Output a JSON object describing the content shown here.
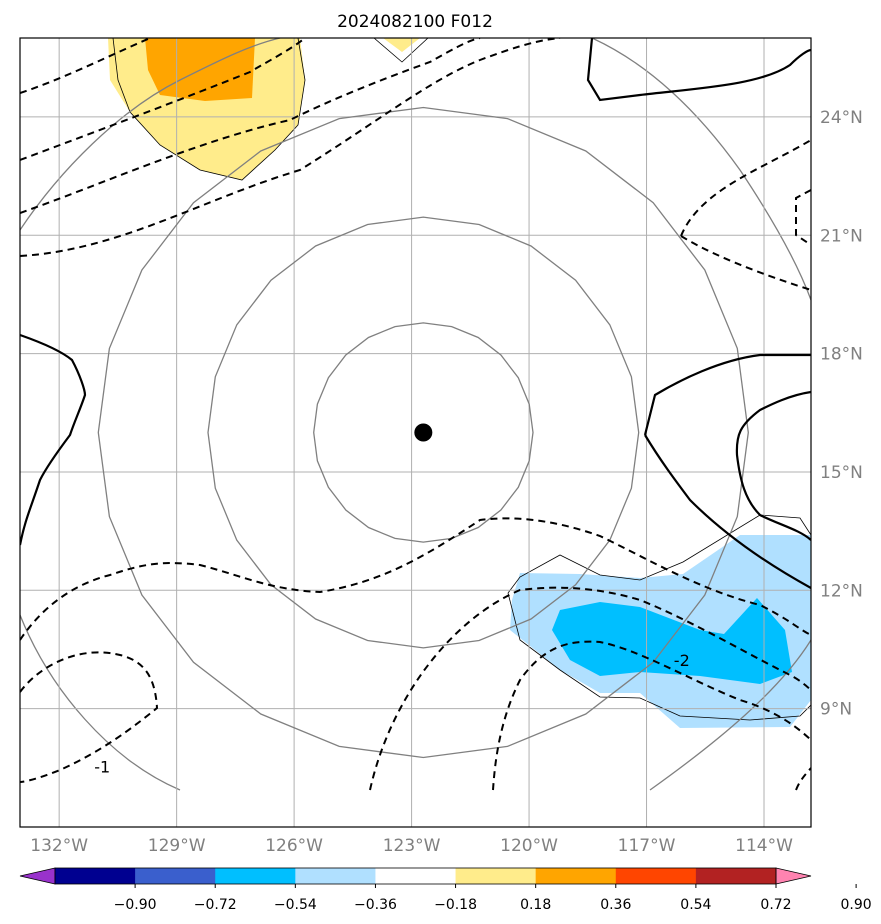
{
  "chart_data": {
    "type": "map-contour",
    "title": "2024082100 F012",
    "lon_range": [
      -133.0,
      -112.8
    ],
    "lat_range": [
      6.0,
      26.0
    ],
    "lon_ticks": [
      {
        "value": -132,
        "label": "132°W"
      },
      {
        "value": -129,
        "label": "129°W"
      },
      {
        "value": -126,
        "label": "126°W"
      },
      {
        "value": -123,
        "label": "123°W"
      },
      {
        "value": -120,
        "label": "120°W"
      },
      {
        "value": -117,
        "label": "117°W"
      },
      {
        "value": -114,
        "label": "114°W"
      }
    ],
    "lat_ticks": [
      {
        "value": 24,
        "label": "24°N"
      },
      {
        "value": 21,
        "label": "21°N"
      },
      {
        "value": 18,
        "label": "18°N"
      },
      {
        "value": 15,
        "label": "15°N"
      },
      {
        "value": 12,
        "label": "12°N"
      },
      {
        "value": 9,
        "label": "9°N"
      }
    ],
    "storm_center": {
      "lon": -122.7,
      "lat": 16.0
    },
    "range_rings_deg": [
      2.8,
      5.5,
      8.3
    ],
    "contour_labels": [
      {
        "text": "-2",
        "lon": -116.1,
        "lat": 10.2
      },
      {
        "text": "-1",
        "lon": -130.9,
        "lat": 7.5
      }
    ],
    "colorbar": {
      "ticks": [
        "−0.90",
        "−0.72",
        "−0.54",
        "−0.36",
        "−0.18",
        "0.18",
        "0.36",
        "0.54",
        "0.72",
        "0.90"
      ],
      "colors": [
        "#9932cc",
        "#000090",
        "#3a5fcd",
        "#00bfff",
        "#b0e0ff",
        "#ffffff",
        "#ffec8b",
        "#ffa500",
        "#ff4500",
        "#b22222",
        "#ff83b0"
      ],
      "extend": "both"
    }
  }
}
